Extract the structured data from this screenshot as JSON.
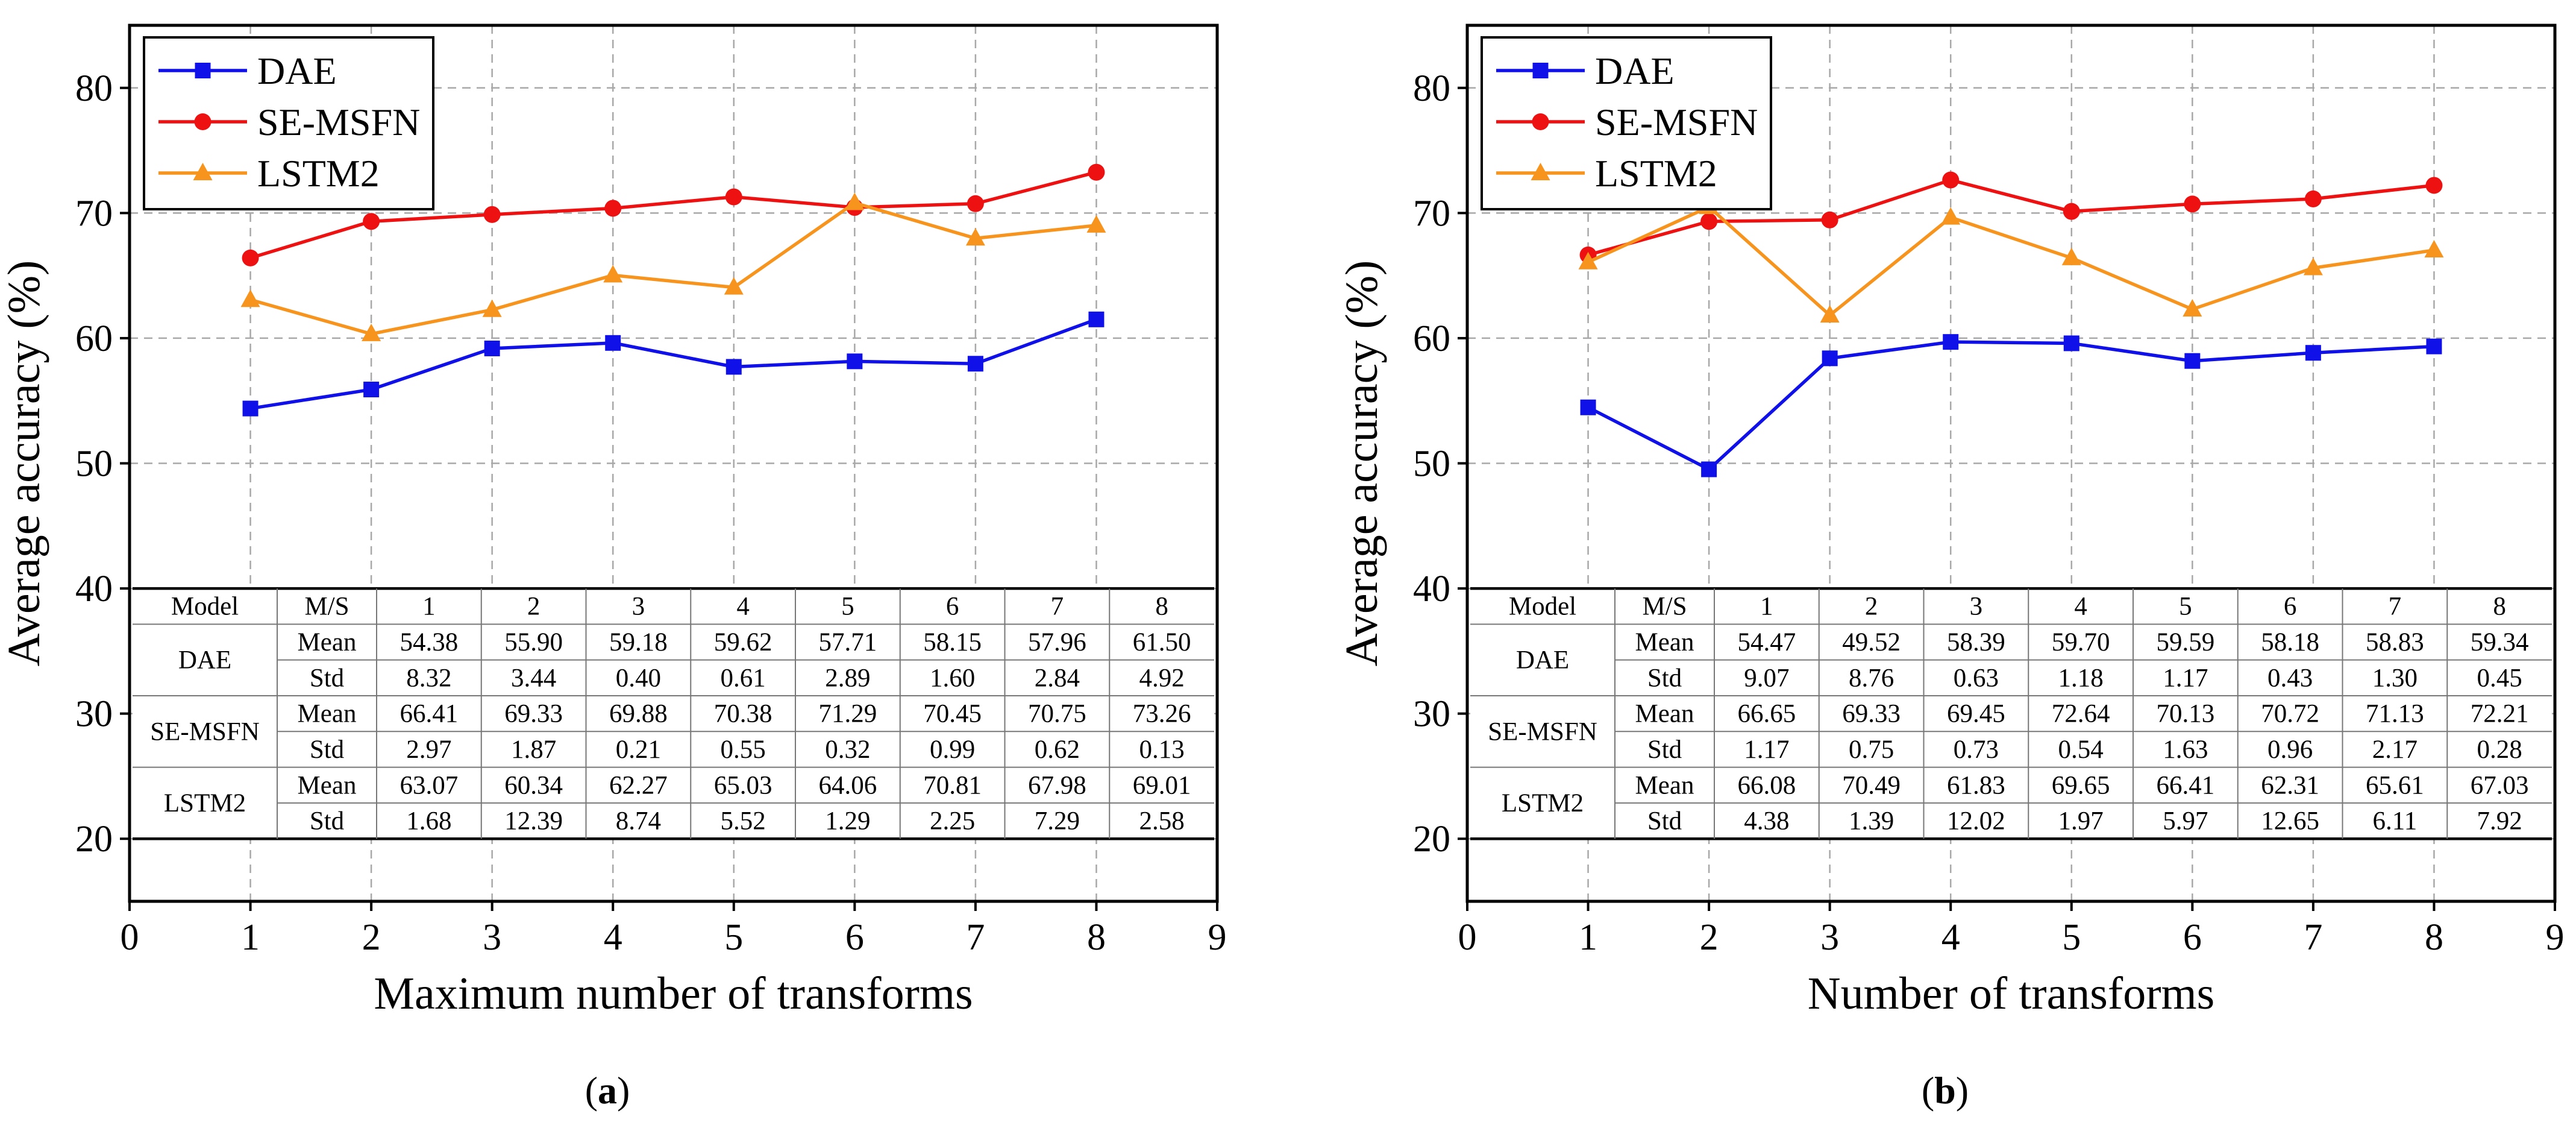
{
  "chart_data": [
    {
      "type": "line",
      "panel_label": "a",
      "xlabel": "Maximum number of transforms",
      "ylabel": "Average accuracy (%)",
      "xlim": [
        0,
        9
      ],
      "ylim": [
        15,
        85
      ],
      "xticks": [
        "0",
        "1",
        "2",
        "3",
        "4",
        "5",
        "6",
        "7",
        "8",
        "9"
      ],
      "yticks": [
        "20",
        "30",
        "40",
        "50",
        "60",
        "70",
        "80"
      ],
      "grid": true,
      "legend_position": "top-left",
      "x": [
        1,
        2,
        3,
        4,
        5,
        6,
        7,
        8
      ],
      "series": [
        {
          "name": "DAE",
          "color": "#1010e8",
          "marker": "square",
          "values": [
            54.38,
            55.9,
            59.18,
            59.62,
            57.71,
            58.15,
            57.96,
            61.5
          ]
        },
        {
          "name": "SE-MSFN",
          "color": "#ee1111",
          "marker": "circle",
          "values": [
            66.41,
            69.33,
            69.88,
            70.38,
            71.29,
            70.45,
            70.75,
            73.26
          ]
        },
        {
          "name": "LSTM2",
          "color": "#f7941d",
          "marker": "triangle",
          "values": [
            63.07,
            60.34,
            62.27,
            65.03,
            64.06,
            70.81,
            67.98,
            69.01
          ]
        }
      ],
      "table": {
        "header": [
          "Model",
          "M/S",
          "1",
          "2",
          "3",
          "4",
          "5",
          "6",
          "7",
          "8"
        ],
        "rows": [
          {
            "model": "DAE",
            "stat": "Mean",
            "values": [
              "54.38",
              "55.90",
              "59.18",
              "59.62",
              "57.71",
              "58.15",
              "57.96",
              "61.50"
            ]
          },
          {
            "model": "",
            "stat": "Std",
            "values": [
              "8.32",
              "3.44",
              "0.40",
              "0.61",
              "2.89",
              "1.60",
              "2.84",
              "4.92"
            ]
          },
          {
            "model": "SE-MSFN",
            "stat": "Mean",
            "values": [
              "66.41",
              "69.33",
              "69.88",
              "70.38",
              "71.29",
              "70.45",
              "70.75",
              "73.26"
            ]
          },
          {
            "model": "",
            "stat": "Std",
            "values": [
              "2.97",
              "1.87",
              "0.21",
              "0.55",
              "0.32",
              "0.99",
              "0.62",
              "0.13"
            ]
          },
          {
            "model": "LSTM2",
            "stat": "Mean",
            "values": [
              "63.07",
              "60.34",
              "62.27",
              "65.03",
              "64.06",
              "70.81",
              "67.98",
              "69.01"
            ]
          },
          {
            "model": "",
            "stat": "Std",
            "values": [
              "1.68",
              "12.39",
              "8.74",
              "5.52",
              "1.29",
              "2.25",
              "7.29",
              "2.58"
            ]
          }
        ]
      }
    },
    {
      "type": "line",
      "panel_label": "b",
      "xlabel": "Number of transforms",
      "ylabel": "Average accuracy (%)",
      "xlim": [
        0,
        9
      ],
      "ylim": [
        15,
        85
      ],
      "xticks": [
        "0",
        "1",
        "2",
        "3",
        "4",
        "5",
        "6",
        "7",
        "8",
        "9"
      ],
      "yticks": [
        "20",
        "30",
        "40",
        "50",
        "60",
        "70",
        "80"
      ],
      "grid": true,
      "legend_position": "top-left",
      "x": [
        1,
        2,
        3,
        4,
        5,
        6,
        7,
        8
      ],
      "series": [
        {
          "name": "DAE",
          "color": "#1010e8",
          "marker": "square",
          "values": [
            54.47,
            49.52,
            58.39,
            59.7,
            59.59,
            58.18,
            58.83,
            59.34
          ]
        },
        {
          "name": "SE-MSFN",
          "color": "#ee1111",
          "marker": "circle",
          "values": [
            66.65,
            69.33,
            69.45,
            72.64,
            70.13,
            70.72,
            71.13,
            72.21
          ]
        },
        {
          "name": "LSTM2",
          "color": "#f7941d",
          "marker": "triangle",
          "values": [
            66.08,
            70.49,
            61.83,
            69.65,
            66.41,
            62.31,
            65.61,
            67.03
          ]
        }
      ],
      "table": {
        "header": [
          "Model",
          "M/S",
          "1",
          "2",
          "3",
          "4",
          "5",
          "6",
          "7",
          "8"
        ],
        "rows": [
          {
            "model": "DAE",
            "stat": "Mean",
            "values": [
              "54.47",
              "49.52",
              "58.39",
              "59.70",
              "59.59",
              "58.18",
              "58.83",
              "59.34"
            ]
          },
          {
            "model": "",
            "stat": "Std",
            "values": [
              "9.07",
              "8.76",
              "0.63",
              "1.18",
              "1.17",
              "0.43",
              "1.30",
              "0.45"
            ]
          },
          {
            "model": "SE-MSFN",
            "stat": "Mean",
            "values": [
              "66.65",
              "69.33",
              "69.45",
              "72.64",
              "70.13",
              "70.72",
              "71.13",
              "72.21"
            ]
          },
          {
            "model": "",
            "stat": "Std",
            "values": [
              "1.17",
              "0.75",
              "0.73",
              "0.54",
              "1.63",
              "0.96",
              "2.17",
              "0.28"
            ]
          },
          {
            "model": "LSTM2",
            "stat": "Mean",
            "values": [
              "66.08",
              "70.49",
              "61.83",
              "69.65",
              "66.41",
              "62.31",
              "65.61",
              "67.03"
            ]
          },
          {
            "model": "",
            "stat": "Std",
            "values": [
              "4.38",
              "1.39",
              "12.02",
              "1.97",
              "5.97",
              "12.65",
              "6.11",
              "7.92"
            ]
          }
        ]
      }
    }
  ]
}
